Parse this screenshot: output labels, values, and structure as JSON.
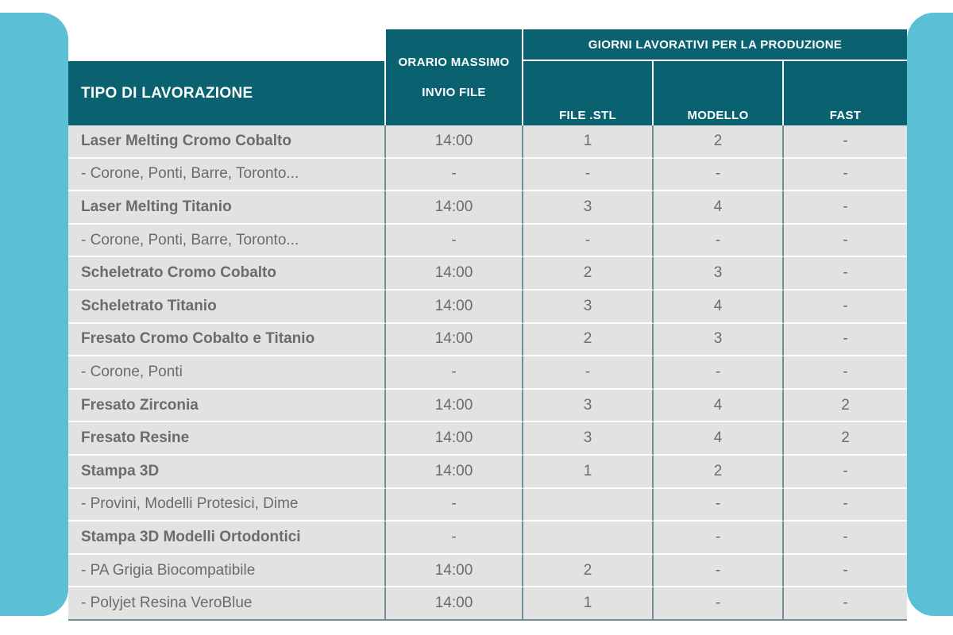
{
  "headers": {
    "tipo": "TIPO DI LAVORAZIONE",
    "orario_line1": "ORARIO MASSIMO",
    "orario_line2": "INVIO FILE",
    "giorni": "GIORNI LAVORATIVI PER LA PRODUZIONE",
    "file_stl": "FILE .STL",
    "modello": "MODELLO",
    "fast": "FAST"
  },
  "rows": [
    {
      "name": "Laser Melting Cromo Cobalto",
      "orario": "14:00",
      "stl": "1",
      "modello": "2",
      "fast": "-",
      "bold": true
    },
    {
      "name": "- Corone, Ponti, Barre, Toronto...",
      "orario": "-",
      "stl": "-",
      "modello": "-",
      "fast": "-",
      "bold": false
    },
    {
      "name": "Laser Melting Titanio",
      "orario": "14:00",
      "stl": "3",
      "modello": "4",
      "fast": "-",
      "bold": true
    },
    {
      "name": "- Corone, Ponti, Barre, Toronto...",
      "orario": "-",
      "stl": "-",
      "modello": "-",
      "fast": "-",
      "bold": false
    },
    {
      "name": "Scheletrato Cromo Cobalto",
      "orario": "14:00",
      "stl": "2",
      "modello": "3",
      "fast": "-",
      "bold": true
    },
    {
      "name": "Scheletrato Titanio",
      "orario": "14:00",
      "stl": "3",
      "modello": "4",
      "fast": "-",
      "bold": true
    },
    {
      "name": "Fresato Cromo Cobalto e Titanio",
      "orario": "14:00",
      "stl": "2",
      "modello": "3",
      "fast": "-",
      "bold": true
    },
    {
      "name": "- Corone, Ponti",
      "orario": "-",
      "stl": "-",
      "modello": "-",
      "fast": "-",
      "bold": false
    },
    {
      "name": "Fresato Zirconia",
      "orario": "14:00",
      "stl": "3",
      "modello": "4",
      "fast": "2",
      "bold": true
    },
    {
      "name": "Fresato Resine",
      "orario": "14:00",
      "stl": "3",
      "modello": "4",
      "fast": "2",
      "bold": true
    },
    {
      "name": "Stampa 3D",
      "orario": "14:00",
      "stl": "1",
      "modello": "2",
      "fast": "-",
      "bold": true
    },
    {
      "name": "- Provini, Modelli Protesici, Dime",
      "orario": "-",
      "stl": "",
      "modello": "-",
      "fast": "-",
      "bold": false
    },
    {
      "name": "Stampa 3D Modelli Ortodontici",
      "orario": "-",
      "stl": "",
      "modello": "-",
      "fast": "-",
      "bold": true
    },
    {
      "name": "- PA Grigia Biocompatibile",
      "orario": "14:00",
      "stl": "2",
      "modello": "-",
      "fast": "-",
      "bold": false
    },
    {
      "name": "- Polyjet Resina VeroBlue",
      "orario": "14:00",
      "stl": "1",
      "modello": "-",
      "fast": "-",
      "bold": false
    }
  ]
}
